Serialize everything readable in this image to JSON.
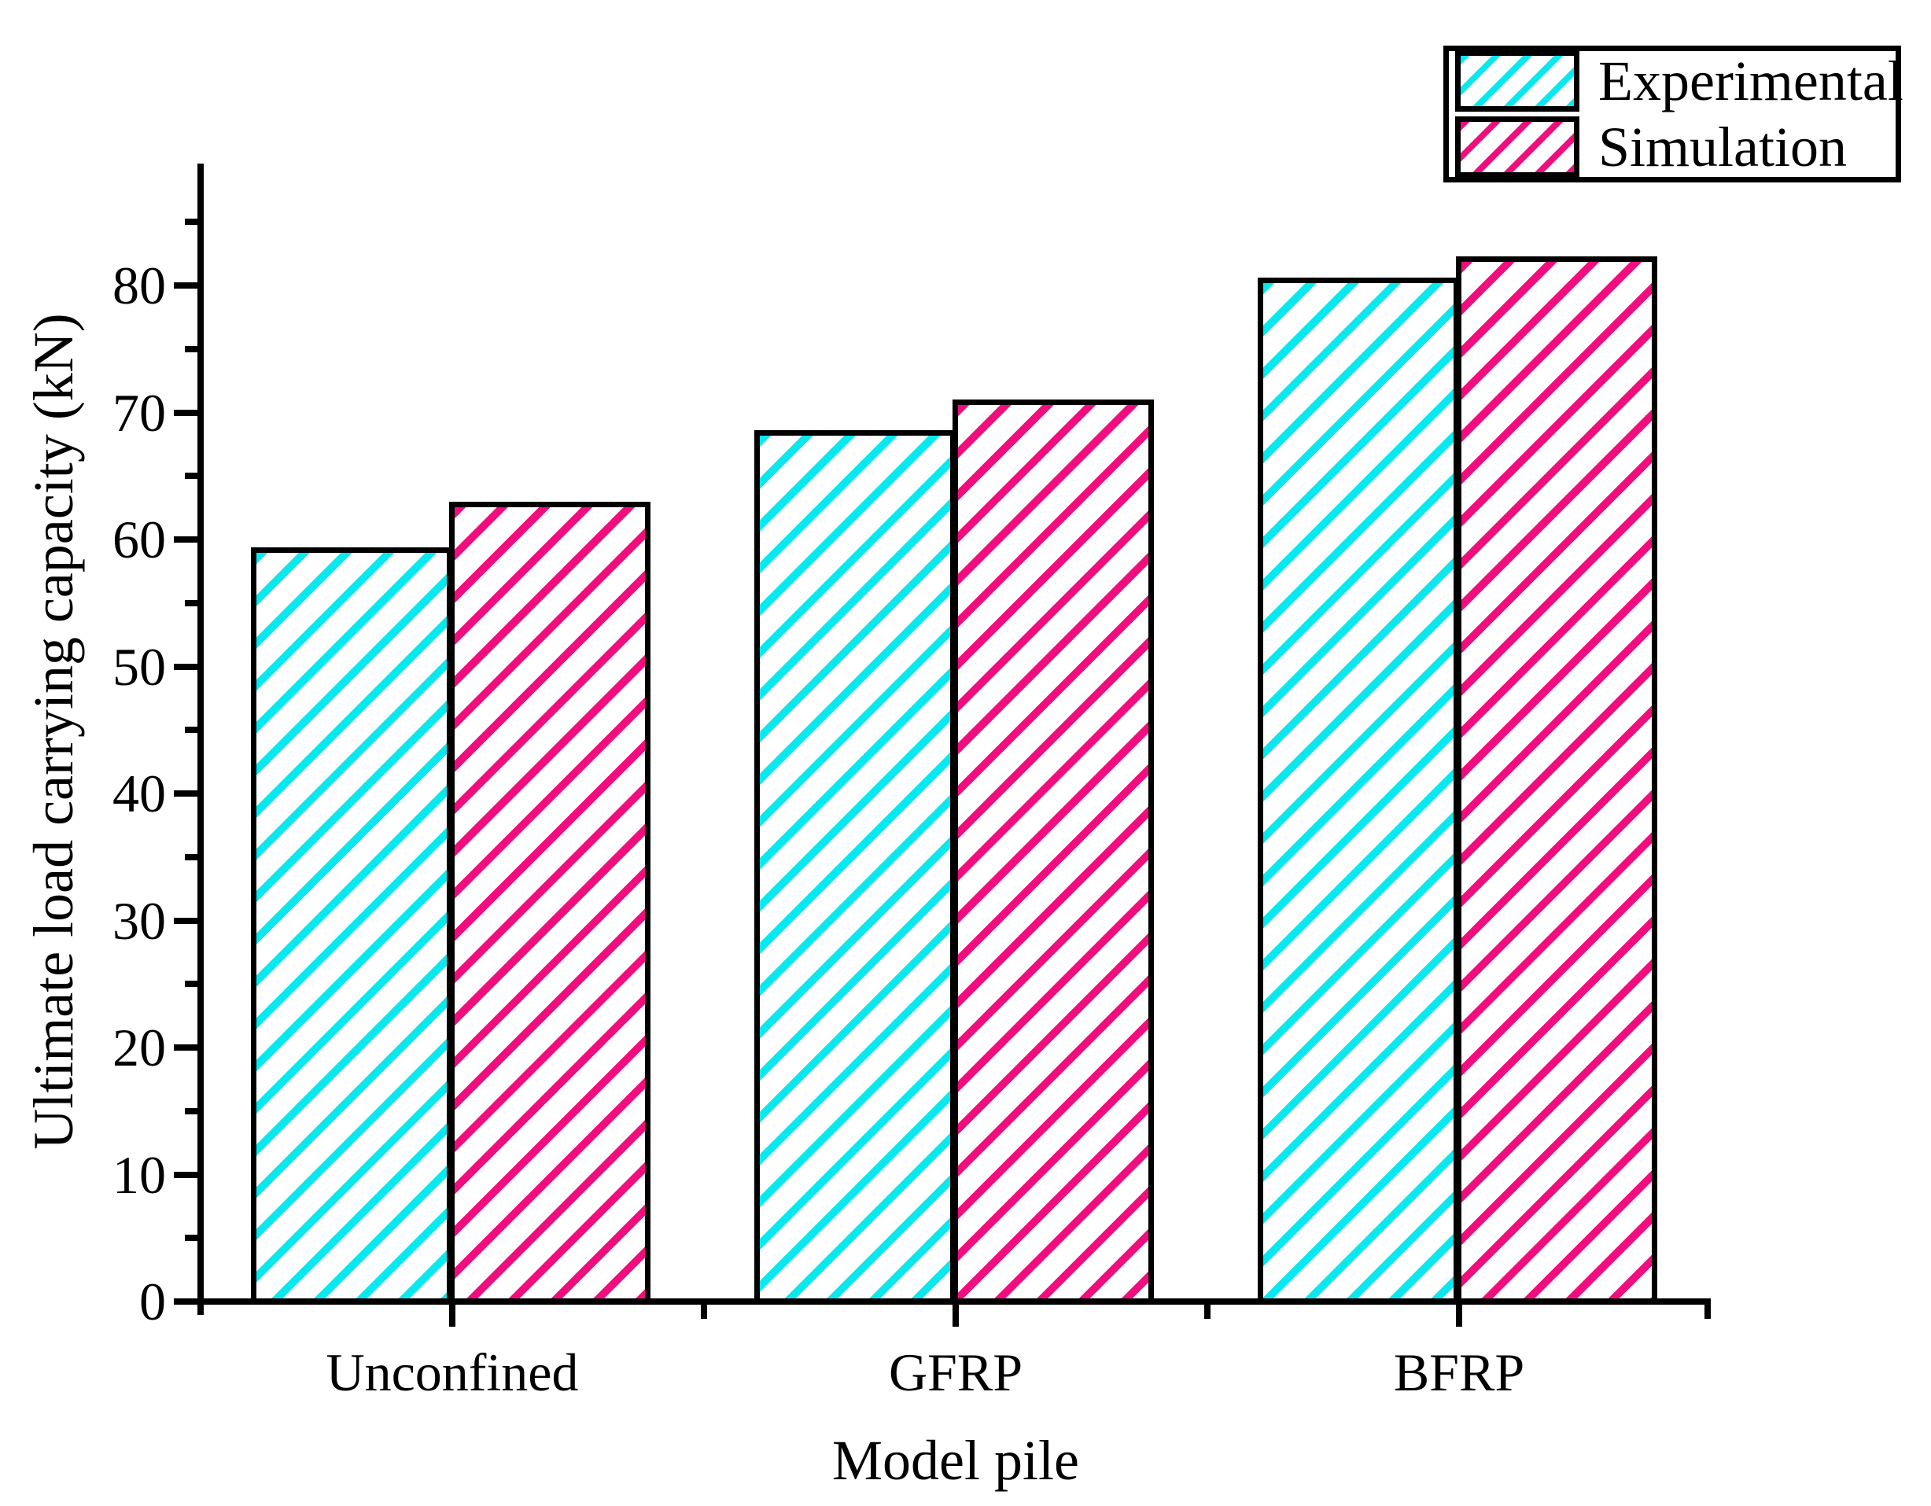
{
  "figure": {
    "background": "#ffffff",
    "text_color": "#000000",
    "axis_color": "#000000"
  },
  "chart_data": {
    "type": "bar",
    "title": "",
    "categories": [
      "Unconfined",
      "GFRP",
      "BFRP"
    ],
    "series": [
      {
        "name": "Experimental",
        "values": [
          59.4,
          68.6,
          80.6
        ],
        "color": "#0ae8ef",
        "hatch": "diagonal-forward"
      },
      {
        "name": "Simulation",
        "values": [
          63.0,
          71.0,
          82.3
        ],
        "color": "#f20d7e",
        "hatch": "diagonal-forward"
      }
    ],
    "xlabel": "Model pile",
    "ylabel": "Ultimate load carrying capacity (kN)",
    "ylim": [
      0,
      89.6
    ],
    "ytick_step_major": 10,
    "ytick_step_minor": 5,
    "ytick_max_major": 80,
    "ytick_max_minor": 85,
    "grid": false,
    "bar_outline": "#000000",
    "legend": {
      "position": "top-right",
      "entries": [
        "Experimental",
        "Simulation"
      ]
    }
  }
}
